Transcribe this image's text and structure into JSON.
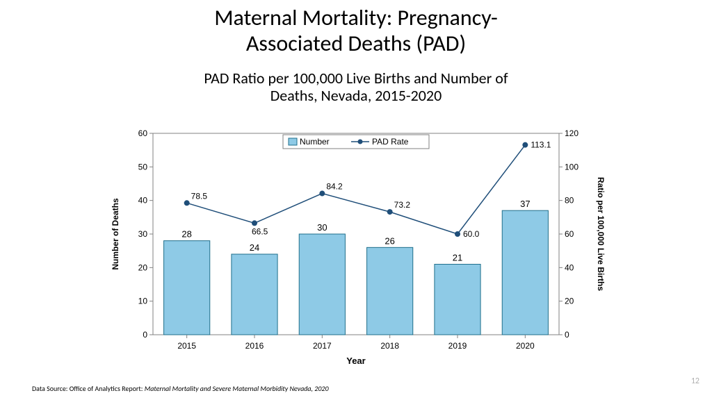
{
  "title_line1": "Maternal Mortality: Pregnancy-",
  "title_line2": "Associated Deaths (PAD)",
  "subtitle_line1": "PAD Ratio per 100,000 Live Births and Number of",
  "subtitle_line2": "Deaths, Nevada, 2015-2020",
  "footer_label": "Data Source: Office of Analytics Report: ",
  "footer_source": "Maternal Mortality and Severe Maternal Morbidity Nevada, 2020",
  "page_number": "12",
  "chart": {
    "type": "bar+line",
    "categories": [
      "2015",
      "2016",
      "2017",
      "2018",
      "2019",
      "2020"
    ],
    "bar_series": {
      "label": "Number",
      "values": [
        28,
        24,
        30,
        26,
        21,
        37
      ],
      "color": "#8ecae6",
      "border_color": "#1f6f8b",
      "width": 0.68
    },
    "line_series": {
      "label": "PAD Rate",
      "values": [
        78.5,
        66.5,
        84.2,
        73.2,
        60.0,
        113.1
      ],
      "color": "#1f4e79",
      "marker": "circle",
      "marker_size": 4,
      "line_width": 1.5
    },
    "y_left": {
      "label": "Number of Deaths",
      "lim": [
        0,
        60
      ],
      "step": 10,
      "fontsize": 12,
      "label_fontsize": 12
    },
    "y_right": {
      "label": "Ratio per 100,000 Live Births",
      "lim": [
        0,
        120
      ],
      "step": 20,
      "fontsize": 12,
      "label_fontsize": 12
    },
    "x": {
      "label": "Year",
      "fontsize": 12,
      "label_fontsize": 13
    },
    "plot_bg": "#ffffff",
    "border_color": "#808080",
    "grid": false,
    "legend": {
      "position": "top-inside",
      "border_color": "#808080",
      "bg": "#ffffff"
    }
  }
}
